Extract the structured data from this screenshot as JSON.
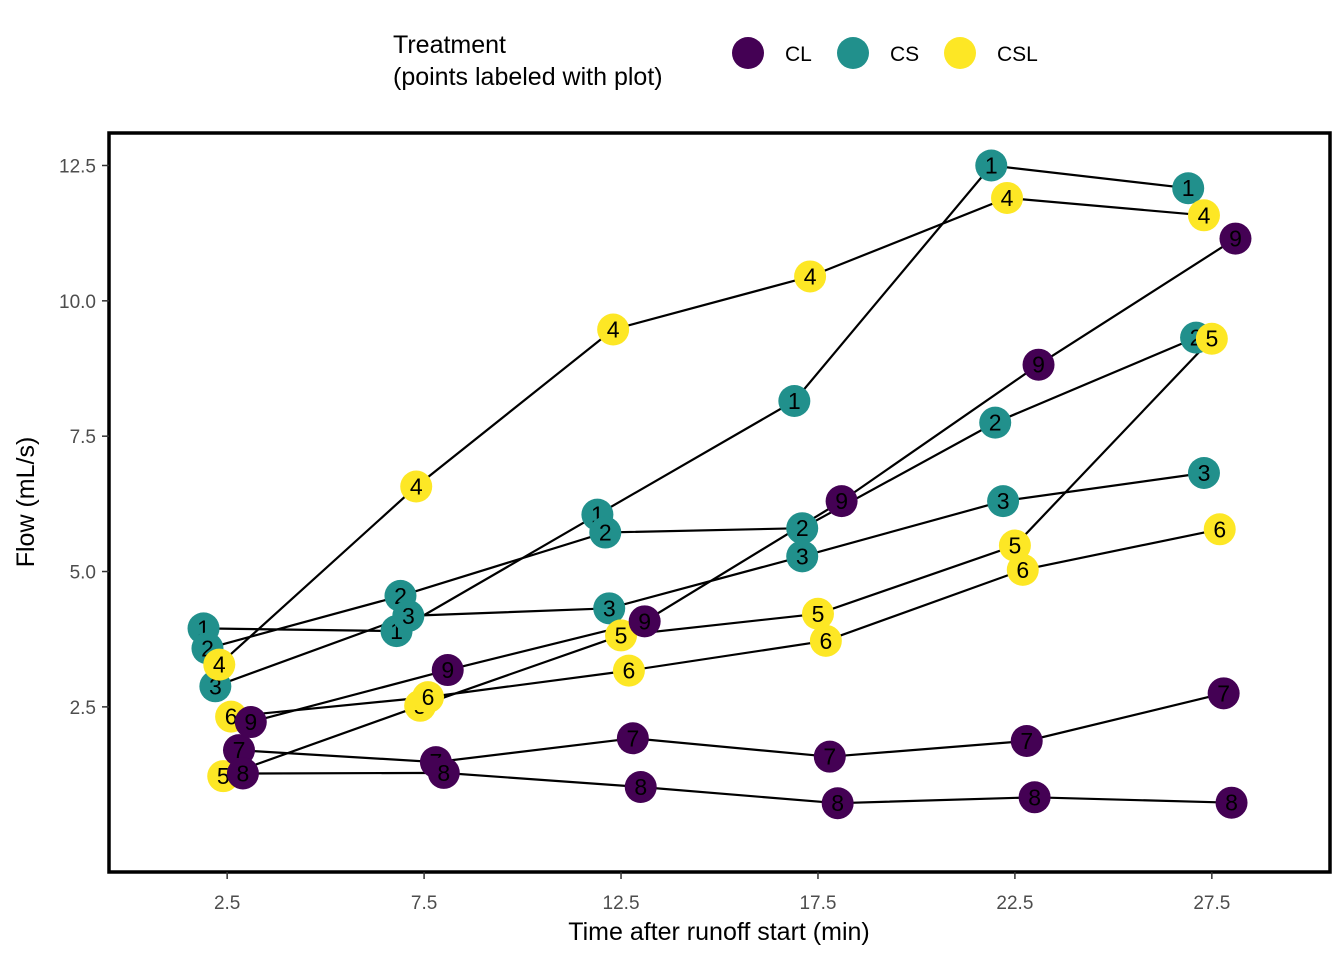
{
  "chart_data": {
    "type": "scatter",
    "xlabel": "Time after runoff start (min)",
    "ylabel": "Flow (mL/s)",
    "xlim": [
      -0.5,
      30.5
    ],
    "ylim": [
      -0.55,
      13.1
    ],
    "xticks": [
      2.5,
      7.5,
      12.5,
      17.5,
      22.5,
      27.5
    ],
    "yticks": [
      2.5,
      5.0,
      7.5,
      10.0,
      12.5
    ],
    "xtick_labels": [
      "2.5",
      "7.5",
      "12.5",
      "17.5",
      "22.5",
      "27.5"
    ],
    "ytick_labels": [
      "2.5",
      "5.0",
      "7.5",
      "10.0",
      "12.5"
    ],
    "grid": false,
    "legend": {
      "position": "top",
      "title_lines": [
        "Treatment",
        "(points labeled with plot)"
      ],
      "entries": [
        {
          "label": "CL",
          "color": "#440154"
        },
        {
          "label": "CS",
          "color": "#21908C"
        },
        {
          "label": "CSL",
          "color": "#FDE725"
        }
      ]
    },
    "series": [
      {
        "plot": "1",
        "treatment": "CS",
        "points": [
          [
            1.9,
            3.95
          ],
          [
            6.8,
            3.9
          ],
          [
            11.9,
            6.05
          ],
          [
            16.9,
            8.15
          ],
          [
            21.9,
            12.5
          ],
          [
            26.9,
            12.08
          ]
        ]
      },
      {
        "plot": "2",
        "treatment": "CS",
        "points": [
          [
            2.0,
            3.58
          ],
          [
            6.9,
            4.55
          ],
          [
            12.1,
            5.72
          ],
          [
            17.1,
            5.8
          ],
          [
            22.0,
            7.75
          ],
          [
            27.1,
            9.32
          ]
        ]
      },
      {
        "plot": "3",
        "treatment": "CS",
        "points": [
          [
            2.2,
            2.88
          ],
          [
            7.1,
            4.18
          ],
          [
            12.2,
            4.32
          ],
          [
            17.1,
            5.28
          ],
          [
            22.2,
            6.3
          ],
          [
            27.3,
            6.82
          ]
        ]
      },
      {
        "plot": "4",
        "treatment": "CSL",
        "points": [
          [
            2.3,
            3.28
          ],
          [
            7.3,
            6.57
          ],
          [
            12.3,
            9.47
          ],
          [
            17.3,
            10.45
          ],
          [
            22.3,
            11.9
          ],
          [
            27.3,
            11.58
          ]
        ]
      },
      {
        "plot": "5",
        "treatment": "CSL",
        "points": [
          [
            2.4,
            1.22
          ],
          [
            7.4,
            2.52
          ],
          [
            12.5,
            3.82
          ],
          [
            17.5,
            4.22
          ],
          [
            22.5,
            5.48
          ],
          [
            27.5,
            9.3
          ]
        ]
      },
      {
        "plot": "6",
        "treatment": "CSL",
        "points": [
          [
            2.6,
            2.32
          ],
          [
            7.6,
            2.68
          ],
          [
            12.7,
            3.17
          ],
          [
            17.7,
            3.72
          ],
          [
            22.7,
            5.03
          ],
          [
            27.7,
            5.78
          ]
        ]
      },
      {
        "plot": "7",
        "treatment": "CL",
        "points": [
          [
            2.8,
            1.7
          ],
          [
            7.8,
            1.48
          ],
          [
            12.8,
            1.92
          ],
          [
            17.8,
            1.58
          ],
          [
            22.8,
            1.87
          ],
          [
            27.8,
            2.75
          ]
        ]
      },
      {
        "plot": "8",
        "treatment": "CL",
        "points": [
          [
            2.9,
            1.27
          ],
          [
            8.0,
            1.28
          ],
          [
            13.0,
            1.02
          ],
          [
            18.0,
            0.72
          ],
          [
            23.0,
            0.83
          ],
          [
            28.0,
            0.73
          ]
        ]
      },
      {
        "plot": "9",
        "treatment": "CL",
        "points": [
          [
            3.1,
            2.22
          ],
          [
            8.1,
            3.18
          ],
          [
            13.1,
            4.08
          ],
          [
            18.1,
            6.3
          ],
          [
            23.1,
            8.82
          ],
          [
            28.1,
            11.15
          ]
        ]
      }
    ]
  }
}
